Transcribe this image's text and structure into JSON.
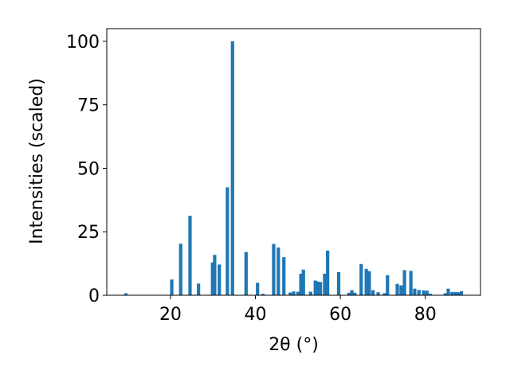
{
  "chart_data": {
    "type": "bar",
    "xlabel": "2θ (°)",
    "ylabel": "Intensities (scaled)",
    "xlim": [
      5,
      93
    ],
    "ylim": [
      0,
      105
    ],
    "x_ticks": [
      20,
      40,
      60,
      80
    ],
    "y_ticks": [
      0,
      25,
      50,
      75,
      100
    ],
    "grid": false,
    "bar_color": "#1f77b4",
    "series": [
      {
        "x": [
          9.5,
          20.3,
          22.4,
          24.6,
          26.6,
          29.9,
          30.4,
          31.5,
          33.4,
          34.6,
          37.8,
          40.5,
          41.8,
          44.3,
          45.4,
          46.7,
          48.2,
          49.0,
          50.0,
          50.7,
          51.3,
          53.0,
          54.1,
          54.7,
          55.3,
          56.3,
          57.0,
          59.6,
          62.0,
          62.7,
          63.4,
          64.9,
          66.1,
          66.8,
          67.7,
          68.9,
          70.4,
          71.1,
          73.4,
          74.3,
          75.1,
          76.6,
          77.5,
          78.5,
          79.6,
          80.4,
          81.2,
          84.7,
          85.4,
          86.3,
          87.1,
          87.8,
          88.5
        ],
        "values": [
          0.8,
          6.2,
          20.3,
          31.3,
          4.6,
          12.9,
          15.9,
          12.1,
          42.5,
          100,
          17.0,
          4.9,
          0.6,
          20.2,
          18.8,
          15.0,
          1.1,
          1.5,
          1.4,
          8.5,
          10.1,
          1.4,
          5.8,
          5.4,
          5.2,
          8.5,
          17.6,
          9.1,
          1.0,
          2.0,
          1.0,
          12.3,
          10.4,
          9.5,
          2.0,
          1.2,
          0.8,
          7.9,
          4.5,
          3.9,
          9.9,
          9.6,
          2.6,
          2.1,
          1.9,
          1.8,
          0.6,
          0.8,
          2.6,
          1.3,
          1.3,
          1.2,
          1.6
        ]
      }
    ]
  }
}
